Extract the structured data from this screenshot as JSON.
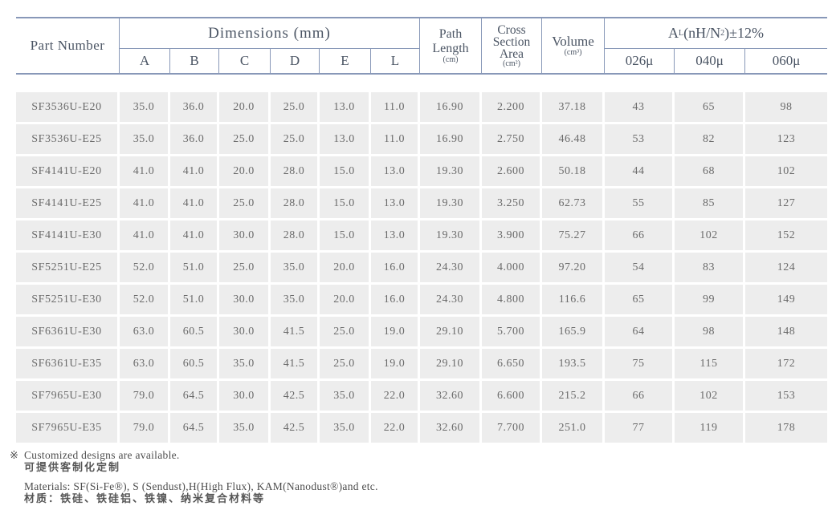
{
  "table": {
    "header": {
      "part_number": "Part Number",
      "dimensions": "Dimensions (mm)",
      "dim_cols": [
        "A",
        "B",
        "C",
        "D",
        "E",
        "L"
      ],
      "path_l1": "Path",
      "path_l2": "Length",
      "path_unit": "(cm)",
      "cross_l1": "Cross",
      "cross_l2": "Section",
      "cross_l3": "Area",
      "cross_unit": "(cm²)",
      "volume": "Volume",
      "volume_unit": "(cm³)",
      "al_base": "A",
      "al_sub": "L",
      "al_mid": "(nH/N",
      "al_sup": "2",
      "al_tail": ")±12%",
      "al_cols": [
        "026μ",
        "040μ",
        "060μ"
      ]
    },
    "columns": [
      "Part Number",
      "A",
      "B",
      "C",
      "D",
      "E",
      "L",
      "Path Length (cm)",
      "Cross Section Area (cm²)",
      "Volume (cm³)",
      "AL 026μ",
      "AL 040μ",
      "AL 060μ"
    ],
    "rows": [
      [
        "SF3536U-E20",
        "35.0",
        "36.0",
        "20.0",
        "25.0",
        "13.0",
        "11.0",
        "16.90",
        "2.200",
        "37.18",
        "43",
        "65",
        "98"
      ],
      [
        "SF3536U-E25",
        "35.0",
        "36.0",
        "25.0",
        "25.0",
        "13.0",
        "11.0",
        "16.90",
        "2.750",
        "46.48",
        "53",
        "82",
        "123"
      ],
      [
        "SF4141U-E20",
        "41.0",
        "41.0",
        "20.0",
        "28.0",
        "15.0",
        "13.0",
        "19.30",
        "2.600",
        "50.18",
        "44",
        "68",
        "102"
      ],
      [
        "SF4141U-E25",
        "41.0",
        "41.0",
        "25.0",
        "28.0",
        "15.0",
        "13.0",
        "19.30",
        "3.250",
        "62.73",
        "55",
        "85",
        "127"
      ],
      [
        "SF4141U-E30",
        "41.0",
        "41.0",
        "30.0",
        "28.0",
        "15.0",
        "13.0",
        "19.30",
        "3.900",
        "75.27",
        "66",
        "102",
        "152"
      ],
      [
        "SF5251U-E25",
        "52.0",
        "51.0",
        "25.0",
        "35.0",
        "20.0",
        "16.0",
        "24.30",
        "4.000",
        "97.20",
        "54",
        "83",
        "124"
      ],
      [
        "SF5251U-E30",
        "52.0",
        "51.0",
        "30.0",
        "35.0",
        "20.0",
        "16.0",
        "24.30",
        "4.800",
        "116.6",
        "65",
        "99",
        "149"
      ],
      [
        "SF6361U-E30",
        "63.0",
        "60.5",
        "30.0",
        "41.5",
        "25.0",
        "19.0",
        "29.10",
        "5.700",
        "165.9",
        "64",
        "98",
        "148"
      ],
      [
        "SF6361U-E35",
        "63.0",
        "60.5",
        "35.0",
        "41.5",
        "25.0",
        "19.0",
        "29.10",
        "6.650",
        "193.5",
        "75",
        "115",
        "172"
      ],
      [
        "SF7965U-E30",
        "79.0",
        "64.5",
        "30.0",
        "42.5",
        "35.0",
        "22.0",
        "32.60",
        "6.600",
        "215.2",
        "66",
        "102",
        "153"
      ],
      [
        "SF7965U-E35",
        "79.0",
        "64.5",
        "35.0",
        "42.5",
        "35.0",
        "22.0",
        "32.60",
        "7.700",
        "251.0",
        "77",
        "119",
        "178"
      ]
    ]
  },
  "footnotes": {
    "marker": "※",
    "custom_en": "Customized designs are available.",
    "custom_cn": "可提供客制化定制",
    "materials_en": "Materials: SF(Si-Fe®), S (Sendust),H(High Flux), KAM(Nanodust®)and etc.",
    "materials_cn": "材质：铁硅、铁硅铝、铁镍、纳米复合材料等"
  },
  "colors": {
    "border": "#8898b8",
    "row_background": "#ededed",
    "header_text": "#4b5564",
    "data_text": "#6b6b6b"
  }
}
